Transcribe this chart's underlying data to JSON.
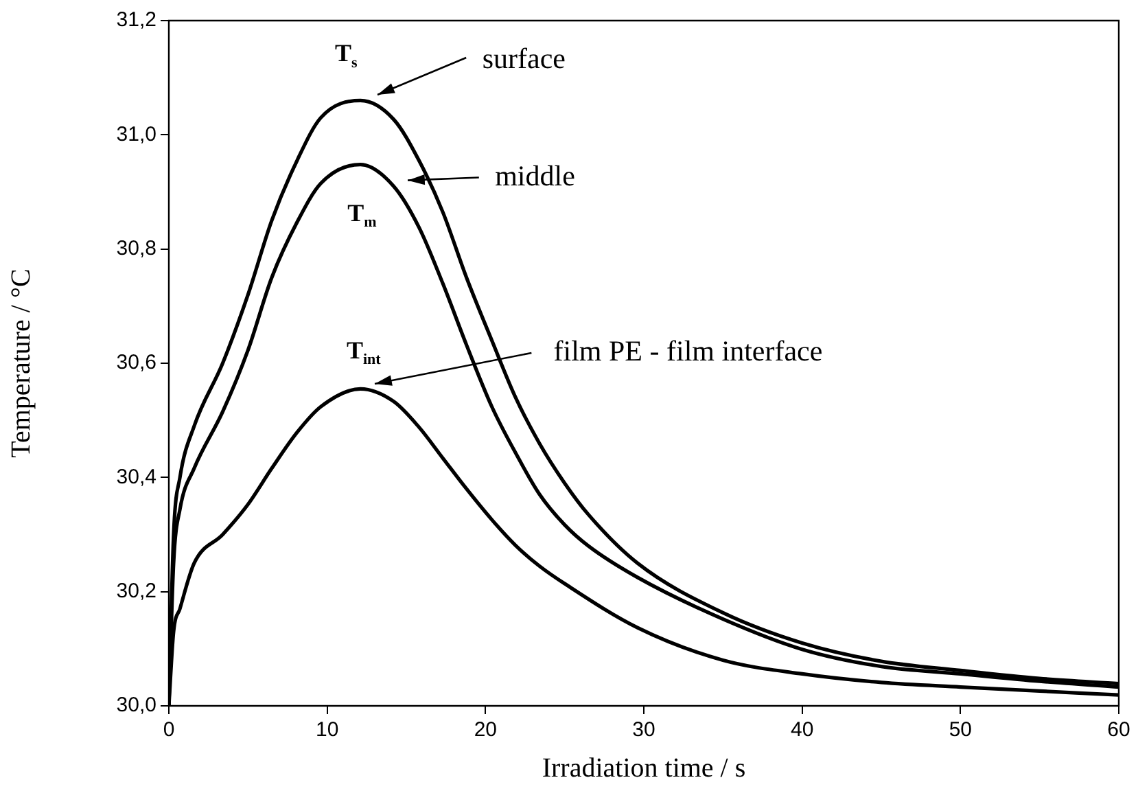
{
  "chart_data": {
    "type": "line",
    "xlabel": "Irradiation time / s",
    "ylabel": "Temperature / °C",
    "xlim": [
      0,
      60
    ],
    "xticks": [
      0,
      10,
      20,
      30,
      40,
      50,
      60
    ],
    "ylim": [
      30.0,
      31.2
    ],
    "yticks": [
      {
        "value": 30.0,
        "label": "30,0"
      },
      {
        "value": 30.2,
        "label": "30,2"
      },
      {
        "value": 30.4,
        "label": "30,4"
      },
      {
        "value": 30.6,
        "label": "30,6"
      },
      {
        "value": 30.8,
        "label": "30,8"
      },
      {
        "value": 31.0,
        "label": "31,0"
      },
      {
        "value": 31.2,
        "label": "31,2"
      }
    ],
    "marker": "none",
    "line_style": "solid",
    "legend": false,
    "series": [
      {
        "color": "#000000",
        "x": [
          0,
          0.3,
          0.7,
          1.6,
          3.4,
          5,
          6.5,
          8.1,
          9.6,
          12.1,
          14.2,
          15.8,
          17.3,
          18.8,
          20.4,
          21.9,
          23.4,
          25,
          26.5,
          29.6,
          35,
          40,
          45,
          50,
          55,
          60
        ],
        "values": [
          30.0,
          30.3,
          30.4,
          30.49,
          30.6,
          30.72,
          30.85,
          30.955,
          31.03,
          31.06,
          31.027,
          30.955,
          30.865,
          30.75,
          30.64,
          30.54,
          30.46,
          30.39,
          30.335,
          30.25,
          30.163,
          30.11,
          30.078,
          30.062,
          30.048,
          30.039
        ]
      },
      {
        "color": "#000000",
        "x": [
          0,
          0.3,
          0.7,
          1.6,
          3.4,
          5,
          6.5,
          8.1,
          9.6,
          12.1,
          14.2,
          15.8,
          17.3,
          18.8,
          20.4,
          21.9,
          23.4,
          25,
          26.5,
          29.6,
          35,
          40,
          45,
          50,
          55,
          60
        ],
        "values": [
          30.0,
          30.25,
          30.344,
          30.416,
          30.515,
          30.623,
          30.75,
          30.847,
          30.915,
          30.948,
          30.91,
          30.838,
          30.74,
          30.632,
          30.524,
          30.443,
          30.371,
          30.317,
          30.28,
          30.225,
          30.152,
          30.099,
          30.069,
          30.056,
          30.043,
          30.033
        ]
      },
      {
        "color": "#000000",
        "x": [
          0,
          0.3,
          0.7,
          1.6,
          3.4,
          5,
          6.5,
          8.1,
          9.6,
          12.1,
          14.2,
          15.8,
          17.3,
          18.8,
          20.4,
          21.9,
          23.4,
          25,
          29.6,
          35,
          40,
          45,
          50,
          55,
          60
        ],
        "values": [
          30.0,
          30.13,
          30.17,
          30.25,
          30.3,
          30.353,
          30.416,
          30.479,
          30.524,
          30.555,
          30.533,
          30.488,
          30.434,
          30.38,
          30.326,
          30.281,
          30.245,
          30.214,
          30.137,
          30.08,
          30.056,
          30.041,
          30.033,
          30.026,
          30.019
        ]
      }
    ],
    "annotations": [
      "T$_{s}$",
      "T$_{m}$",
      "T$_{int}$",
      "surface",
      "middle",
      "film PE - film interface"
    ]
  }
}
